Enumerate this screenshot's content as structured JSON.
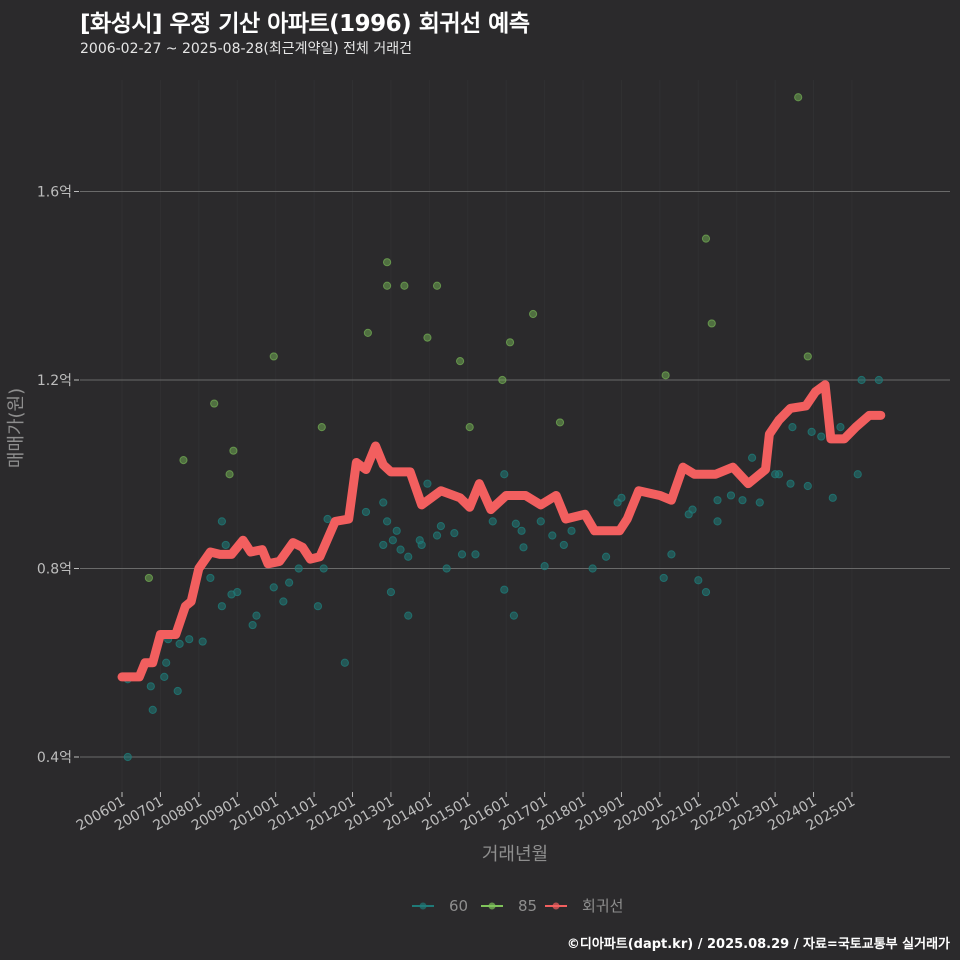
{
  "title": "[화성시] 우정 기산 아파트(1996) 회귀선 예측",
  "subtitle": "2006-02-27 ~ 2025-08-28(최근계약일) 전체 거래건",
  "footer": "©디아파트(dapt.kr) / 2025.08.29 / 자료=국토교통부 실거래가",
  "colors": {
    "background": "#2b2a2c",
    "s60": "#1f7a78",
    "s85": "#7fc35a",
    "regression": "#f25f5f",
    "grid": "#6a6a6a"
  },
  "chart_data": {
    "type": "scatter",
    "xlabel": "거래년월",
    "ylabel": "매매가(원)",
    "xlim": [
      2005.9,
      2026.1
    ],
    "ylim": [
      0.33,
      1.83
    ],
    "y_ticks": [
      {
        "v": 0.4,
        "label": "0.4억"
      },
      {
        "v": 0.8,
        "label": "0.8억"
      },
      {
        "v": 1.2,
        "label": "1.2억"
      },
      {
        "v": 1.6,
        "label": "1.6억"
      }
    ],
    "x_ticks": [
      {
        "v": 2006,
        "label": "200601"
      },
      {
        "v": 2007,
        "label": "200701"
      },
      {
        "v": 2008,
        "label": "200801"
      },
      {
        "v": 2009,
        "label": "200901"
      },
      {
        "v": 2010,
        "label": "201001"
      },
      {
        "v": 2011,
        "label": "201101"
      },
      {
        "v": 2012,
        "label": "201201"
      },
      {
        "v": 2013,
        "label": "201301"
      },
      {
        "v": 2014,
        "label": "201401"
      },
      {
        "v": 2015,
        "label": "201501"
      },
      {
        "v": 2016,
        "label": "201601"
      },
      {
        "v": 2017,
        "label": "201701"
      },
      {
        "v": 2018,
        "label": "201801"
      },
      {
        "v": 2019,
        "label": "201901"
      },
      {
        "v": 2020,
        "label": "202001"
      },
      {
        "v": 2021,
        "label": "202101"
      },
      {
        "v": 2022,
        "label": "202201"
      },
      {
        "v": 2023,
        "label": "202301"
      },
      {
        "v": 2024,
        "label": "202401"
      },
      {
        "v": 2025,
        "label": "202501"
      }
    ],
    "grid": true,
    "legend_position": "bottom",
    "series": [
      {
        "name": "60",
        "type": "scatter",
        "points": [
          [
            2006.15,
            0.4
          ],
          [
            2006.15,
            0.565
          ],
          [
            2006.75,
            0.55
          ],
          [
            2006.8,
            0.5
          ],
          [
            2007.1,
            0.57
          ],
          [
            2007.15,
            0.6
          ],
          [
            2007.2,
            0.65
          ],
          [
            2007.45,
            0.54
          ],
          [
            2007.5,
            0.64
          ],
          [
            2007.75,
            0.65
          ],
          [
            2008.1,
            0.645
          ],
          [
            2008.3,
            0.78
          ],
          [
            2008.6,
            0.72
          ],
          [
            2008.6,
            0.9
          ],
          [
            2008.7,
            0.85
          ],
          [
            2008.85,
            0.745
          ],
          [
            2009.0,
            0.75
          ],
          [
            2009.4,
            0.68
          ],
          [
            2009.5,
            0.7
          ],
          [
            2009.95,
            0.76
          ],
          [
            2010.2,
            0.73
          ],
          [
            2010.35,
            0.77
          ],
          [
            2010.6,
            0.8
          ],
          [
            2011.1,
            0.72
          ],
          [
            2011.25,
            0.8
          ],
          [
            2011.35,
            0.905
          ],
          [
            2011.8,
            0.6
          ],
          [
            2012.35,
            0.92
          ],
          [
            2012.8,
            0.85
          ],
          [
            2012.8,
            0.94
          ],
          [
            2012.9,
            0.9
          ],
          [
            2013.0,
            0.75
          ],
          [
            2013.05,
            0.86
          ],
          [
            2013.15,
            0.88
          ],
          [
            2013.25,
            0.84
          ],
          [
            2013.45,
            0.825
          ],
          [
            2013.45,
            0.7
          ],
          [
            2013.75,
            0.86
          ],
          [
            2013.8,
            0.85
          ],
          [
            2013.95,
            0.98
          ],
          [
            2014.2,
            0.87
          ],
          [
            2014.3,
            0.89
          ],
          [
            2014.45,
            0.8
          ],
          [
            2014.65,
            0.875
          ],
          [
            2014.85,
            0.83
          ],
          [
            2015.2,
            0.83
          ],
          [
            2015.65,
            0.9
          ],
          [
            2015.95,
            0.755
          ],
          [
            2015.95,
            1.0
          ],
          [
            2016.2,
            0.7
          ],
          [
            2016.25,
            0.895
          ],
          [
            2016.4,
            0.88
          ],
          [
            2016.45,
            0.845
          ],
          [
            2016.9,
            0.9
          ],
          [
            2017.0,
            0.805
          ],
          [
            2017.2,
            0.87
          ],
          [
            2017.5,
            0.85
          ],
          [
            2017.7,
            0.88
          ],
          [
            2018.25,
            0.8
          ],
          [
            2018.6,
            0.825
          ],
          [
            2018.9,
            0.94
          ],
          [
            2019.0,
            0.95
          ],
          [
            2020.1,
            0.78
          ],
          [
            2020.3,
            0.83
          ],
          [
            2020.75,
            0.915
          ],
          [
            2020.85,
            0.925
          ],
          [
            2021.0,
            0.775
          ],
          [
            2021.2,
            0.75
          ],
          [
            2021.5,
            0.9
          ],
          [
            2021.5,
            0.945
          ],
          [
            2021.85,
            0.955
          ],
          [
            2022.15,
            0.945
          ],
          [
            2022.4,
            1.035
          ],
          [
            2022.6,
            0.94
          ],
          [
            2023.0,
            1.0
          ],
          [
            2023.1,
            1.0
          ],
          [
            2023.4,
            0.98
          ],
          [
            2023.45,
            1.1
          ],
          [
            2023.85,
            0.975
          ],
          [
            2023.95,
            1.09
          ],
          [
            2024.2,
            1.08
          ],
          [
            2024.5,
            0.95
          ],
          [
            2024.7,
            1.1
          ],
          [
            2025.15,
            1.0
          ],
          [
            2025.25,
            1.2
          ],
          [
            2025.7,
            1.2
          ]
        ]
      },
      {
        "name": "85",
        "type": "scatter",
        "points": [
          [
            2006.7,
            0.78
          ],
          [
            2007.6,
            1.03
          ],
          [
            2008.4,
            1.15
          ],
          [
            2008.8,
            1.0
          ],
          [
            2008.9,
            1.05
          ],
          [
            2009.95,
            1.25
          ],
          [
            2011.2,
            1.1
          ],
          [
            2012.4,
            1.3
          ],
          [
            2012.9,
            1.45
          ],
          [
            2012.9,
            1.4
          ],
          [
            2013.35,
            1.4
          ],
          [
            2013.95,
            1.29
          ],
          [
            2014.2,
            1.4
          ],
          [
            2014.8,
            1.24
          ],
          [
            2015.05,
            1.1
          ],
          [
            2015.9,
            1.2
          ],
          [
            2016.1,
            1.28
          ],
          [
            2016.7,
            1.34
          ],
          [
            2017.4,
            1.11
          ],
          [
            2020.15,
            1.21
          ],
          [
            2021.2,
            1.5
          ],
          [
            2021.35,
            1.32
          ],
          [
            2023.6,
            1.8
          ],
          [
            2023.85,
            1.25
          ]
        ]
      },
      {
        "name": "회귀선",
        "type": "line",
        "points": [
          [
            2006.0,
            0.57
          ],
          [
            2006.45,
            0.57
          ],
          [
            2006.6,
            0.6
          ],
          [
            2006.8,
            0.6
          ],
          [
            2007.0,
            0.66
          ],
          [
            2007.4,
            0.66
          ],
          [
            2007.65,
            0.72
          ],
          [
            2007.8,
            0.73
          ],
          [
            2008.0,
            0.8
          ],
          [
            2008.3,
            0.835
          ],
          [
            2008.55,
            0.83
          ],
          [
            2008.85,
            0.83
          ],
          [
            2009.15,
            0.86
          ],
          [
            2009.35,
            0.835
          ],
          [
            2009.65,
            0.84
          ],
          [
            2009.8,
            0.81
          ],
          [
            2010.1,
            0.815
          ],
          [
            2010.45,
            0.855
          ],
          [
            2010.7,
            0.845
          ],
          [
            2010.9,
            0.82
          ],
          [
            2011.15,
            0.825
          ],
          [
            2011.55,
            0.9
          ],
          [
            2011.9,
            0.905
          ],
          [
            2012.1,
            1.025
          ],
          [
            2012.35,
            1.01
          ],
          [
            2012.6,
            1.06
          ],
          [
            2012.8,
            1.02
          ],
          [
            2013.0,
            1.005
          ],
          [
            2013.5,
            1.005
          ],
          [
            2013.8,
            0.935
          ],
          [
            2014.3,
            0.965
          ],
          [
            2014.8,
            0.95
          ],
          [
            2015.05,
            0.93
          ],
          [
            2015.3,
            0.98
          ],
          [
            2015.6,
            0.925
          ],
          [
            2016.0,
            0.955
          ],
          [
            2016.5,
            0.955
          ],
          [
            2016.9,
            0.935
          ],
          [
            2017.3,
            0.955
          ],
          [
            2017.55,
            0.905
          ],
          [
            2018.05,
            0.915
          ],
          [
            2018.3,
            0.88
          ],
          [
            2018.95,
            0.88
          ],
          [
            2019.15,
            0.905
          ],
          [
            2019.45,
            0.965
          ],
          [
            2020.0,
            0.955
          ],
          [
            2020.3,
            0.945
          ],
          [
            2020.6,
            1.015
          ],
          [
            2020.9,
            1.0
          ],
          [
            2021.45,
            1.0
          ],
          [
            2021.9,
            1.015
          ],
          [
            2022.3,
            0.98
          ],
          [
            2022.75,
            1.01
          ],
          [
            2022.85,
            1.085
          ],
          [
            2023.1,
            1.115
          ],
          [
            2023.4,
            1.14
          ],
          [
            2023.8,
            1.145
          ],
          [
            2024.05,
            1.175
          ],
          [
            2024.3,
            1.19
          ],
          [
            2024.45,
            1.075
          ],
          [
            2024.8,
            1.075
          ],
          [
            2025.1,
            1.1
          ],
          [
            2025.45,
            1.125
          ],
          [
            2025.75,
            1.125
          ]
        ]
      }
    ]
  }
}
